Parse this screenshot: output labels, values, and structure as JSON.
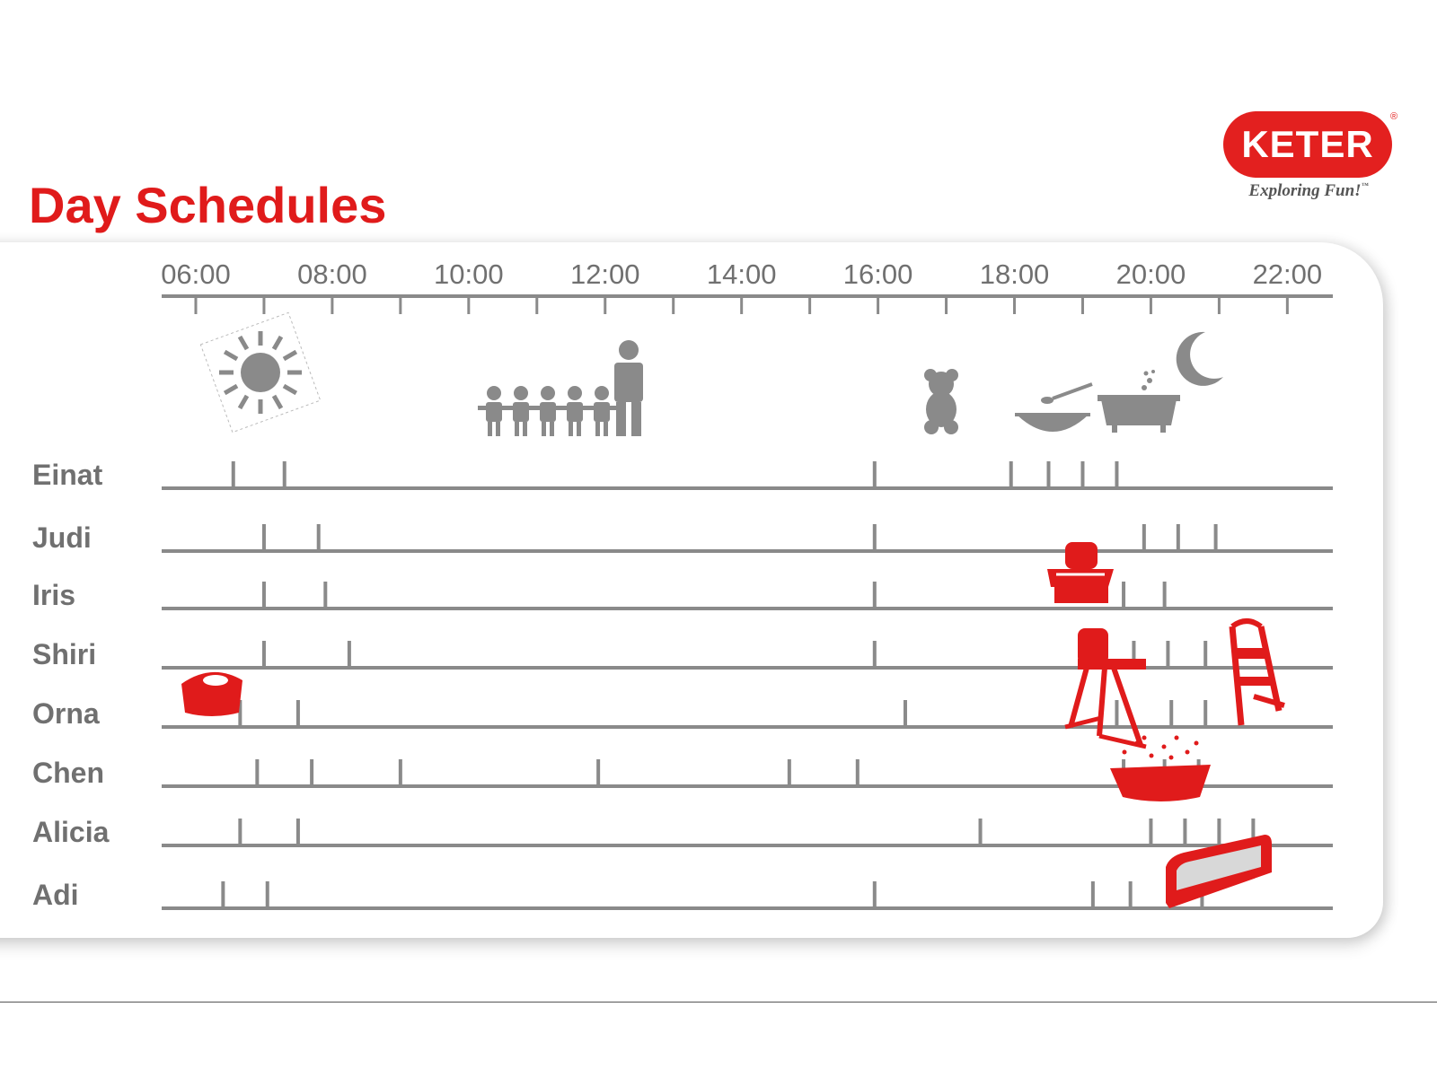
{
  "title": "Day Schedules",
  "logo": {
    "brand": "KETER",
    "tagline": "Exploring Fun!",
    "registered": "®",
    "trademark": "™"
  },
  "colors": {
    "accent": "#e01b1b",
    "gray": "#8a8a8a",
    "label": "#707070"
  },
  "activities": [
    {
      "icon": "sun-icon",
      "hour": 7.0
    },
    {
      "icon": "children-group-icon",
      "hour": 11.2
    },
    {
      "icon": "teddy-bear-icon",
      "hour": 16.9
    },
    {
      "icon": "food-bowl-icon",
      "hour": 18.4
    },
    {
      "icon": "bathtub-icon",
      "hour": 19.7
    },
    {
      "icon": "moon-icon",
      "hour": 21.0
    }
  ],
  "products": [
    {
      "icon": "potty-icon",
      "near": "Orna"
    },
    {
      "icon": "booster-seat-icon",
      "near": "Iris"
    },
    {
      "icon": "high-chair-icon",
      "near": "Orna"
    },
    {
      "icon": "step-stool-potty-icon",
      "near": "Orna"
    },
    {
      "icon": "baby-bath-icon",
      "near": "Chen"
    },
    {
      "icon": "bed-rail-icon",
      "near": "Adi"
    }
  ],
  "chart_data": {
    "type": "timeline",
    "xlim": [
      "05:30",
      "22:40"
    ],
    "x_ticks": [
      "06:00",
      "08:00",
      "10:00",
      "12:00",
      "14:00",
      "16:00",
      "18:00",
      "20:00",
      "22:00"
    ],
    "rows": [
      {
        "name": "Einat",
        "events": [
          6.55,
          7.3,
          15.95,
          17.95,
          18.5,
          19.0,
          19.5
        ]
      },
      {
        "name": "Judi",
        "events": [
          7.0,
          7.8,
          15.95,
          19.9,
          20.4,
          20.95
        ]
      },
      {
        "name": "Iris",
        "events": [
          7.0,
          7.9,
          15.95,
          19.6,
          20.2
        ]
      },
      {
        "name": "Shiri",
        "events": [
          7.0,
          8.25,
          15.95,
          19.75,
          20.25,
          20.8
        ]
      },
      {
        "name": "Orna",
        "events": [
          6.65,
          7.5,
          16.4,
          19.5,
          20.3,
          20.8
        ]
      },
      {
        "name": "Chen",
        "events": [
          6.9,
          7.7,
          9.0,
          11.9,
          14.7,
          15.7,
          19.6,
          20.2,
          20.7
        ]
      },
      {
        "name": "Alicia",
        "events": [
          6.65,
          7.5,
          17.5,
          20.0,
          20.5,
          21.0,
          21.5
        ]
      },
      {
        "name": "Adi",
        "events": [
          6.4,
          7.05,
          15.95,
          19.15,
          19.7,
          20.75
        ]
      }
    ]
  }
}
